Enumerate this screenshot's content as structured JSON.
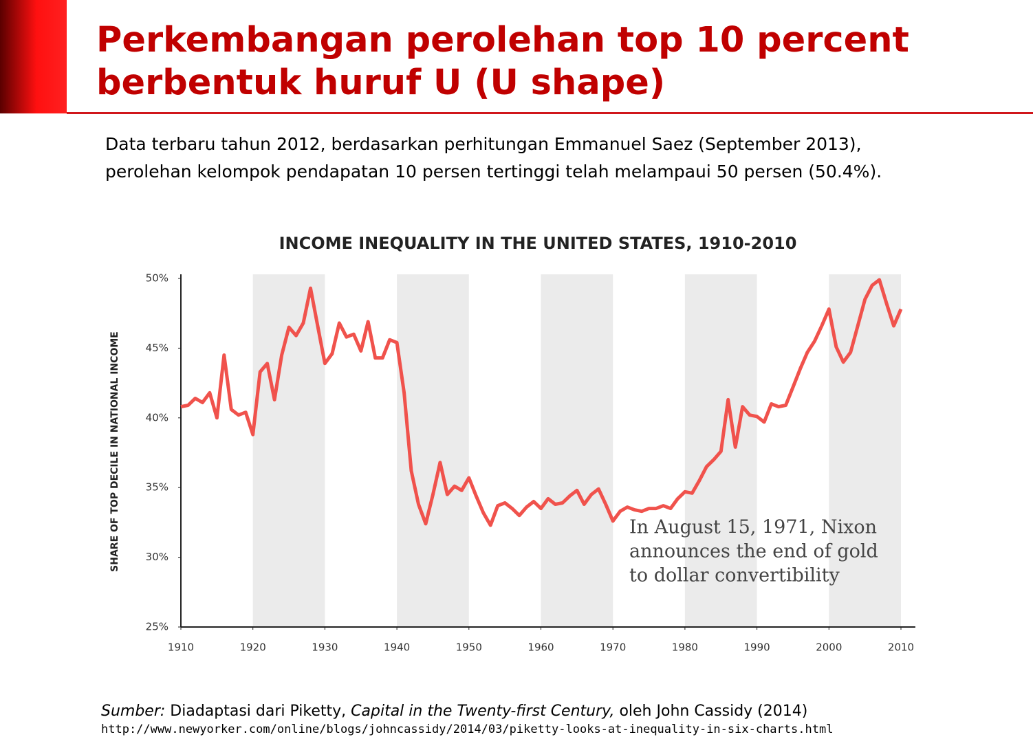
{
  "header": {
    "title_lines": [
      "Perkembangan perolehan top 10 percent",
      "berbentuk huruf U (U shape)"
    ]
  },
  "intro": [
    "Data terbaru tahun 2012, berdasarkan perhitungan Emmanuel Saez (September 2013),",
    "perolehan kelompok pendapatan 10 persen tertinggi telah melampaui 50 persen (50.4%)."
  ],
  "chart_data": {
    "type": "line",
    "title": "INCOME INEQUALITY IN THE UNITED STATES, 1910-2010",
    "y_label": "SHARE OF TOP DECILE IN NATIONAL INCOME",
    "x": [
      1910,
      1911,
      1912,
      1913,
      1914,
      1915,
      1916,
      1917,
      1918,
      1919,
      1920,
      1921,
      1922,
      1923,
      1924,
      1925,
      1926,
      1927,
      1928,
      1929,
      1930,
      1931,
      1932,
      1933,
      1934,
      1935,
      1936,
      1937,
      1938,
      1939,
      1940,
      1941,
      1942,
      1943,
      1944,
      1945,
      1946,
      1947,
      1948,
      1949,
      1950,
      1951,
      1952,
      1953,
      1954,
      1955,
      1956,
      1957,
      1958,
      1959,
      1960,
      1961,
      1962,
      1963,
      1964,
      1965,
      1966,
      1967,
      1968,
      1969,
      1970,
      1971,
      1972,
      1973,
      1974,
      1975,
      1976,
      1977,
      1978,
      1979,
      1980,
      1981,
      1982,
      1983,
      1984,
      1985,
      1986,
      1987,
      1988,
      1989,
      1990,
      1991,
      1992,
      1993,
      1994,
      1995,
      1996,
      1997,
      1998,
      1999,
      2000,
      2001,
      2002,
      2003,
      2004,
      2005,
      2006,
      2007,
      2008,
      2009,
      2010
    ],
    "values": [
      40.8,
      40.9,
      41.4,
      41.1,
      41.8,
      40.0,
      44.5,
      40.6,
      40.2,
      40.4,
      38.8,
      43.3,
      43.9,
      41.3,
      44.5,
      46.5,
      45.9,
      46.8,
      49.3,
      46.6,
      43.9,
      44.6,
      46.8,
      45.8,
      46.0,
      44.8,
      46.9,
      44.3,
      44.3,
      45.6,
      45.4,
      41.8,
      36.2,
      33.8,
      32.4,
      34.5,
      36.8,
      34.5,
      35.1,
      34.8,
      35.7,
      34.4,
      33.2,
      32.3,
      33.7,
      33.9,
      33.5,
      33.0,
      33.6,
      34.0,
      33.5,
      34.2,
      33.8,
      33.9,
      34.4,
      34.8,
      33.8,
      34.5,
      34.9,
      33.8,
      32.6,
      33.3,
      33.6,
      33.4,
      33.3,
      33.5,
      33.5,
      33.7,
      33.5,
      34.2,
      34.7,
      34.6,
      35.5,
      36.5,
      37.0,
      37.6,
      41.3,
      37.9,
      40.8,
      40.2,
      40.1,
      39.7,
      41.0,
      40.8,
      40.9,
      42.2,
      43.5,
      44.7,
      45.5,
      46.6,
      47.8,
      45.1,
      44.0,
      44.7,
      46.6,
      48.5,
      49.5,
      49.9,
      48.2,
      46.6,
      47.8
    ],
    "color": "#f0524c",
    "xlim": [
      1910,
      2012
    ],
    "ylim": [
      25,
      50
    ],
    "xticks": [
      1910,
      1920,
      1930,
      1940,
      1950,
      1960,
      1970,
      1980,
      1990,
      2000,
      2010
    ],
    "yticks": [
      {
        "value": 25,
        "label": "25%"
      },
      {
        "value": 30,
        "label": "30%"
      },
      {
        "value": 35,
        "label": "35%"
      },
      {
        "value": 40,
        "label": "40%"
      },
      {
        "value": 45,
        "label": "45%"
      },
      {
        "value": 50,
        "label": "50%"
      }
    ],
    "shaded_bands": [
      [
        1920,
        1930
      ],
      [
        1940,
        1950
      ],
      [
        1960,
        1970
      ],
      [
        1980,
        1990
      ],
      [
        2000,
        2010
      ]
    ],
    "band_color": "#ebebeb",
    "grid": false,
    "annotation": [
      "In August 15, 1971, Nixon",
      "announces the end of gold",
      "to dollar convertibility"
    ]
  },
  "source": {
    "prefix": "Sumber:",
    "text1": " Diadaptasi dari Piketty, ",
    "book": "Capital in the Twenty-first Century,",
    "text2": " oleh John Cassidy (2014)",
    "url": "http://www.newyorker.com/online/blogs/johncassidy/2014/03/piketty-looks-at-inequality-in-six-charts.html"
  }
}
